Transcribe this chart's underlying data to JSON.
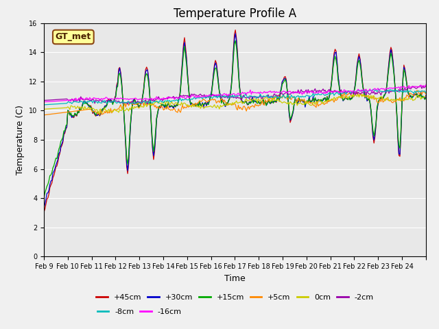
{
  "title": "Temperature Profile A",
  "xlabel": "Time",
  "ylabel": "Temperature (C)",
  "ylim": [
    0,
    16
  ],
  "yticks": [
    0,
    2,
    4,
    6,
    8,
    10,
    12,
    14,
    16
  ],
  "background_color": "#e8e8e8",
  "series": [
    {
      "label": "+45cm",
      "color": "#cc0000",
      "lw": 1.2
    },
    {
      "label": "+30cm",
      "color": "#0000cc",
      "lw": 1.2
    },
    {
      "label": "+15cm",
      "color": "#00cc00",
      "lw": 1.2
    },
    {
      "label": "+5cm",
      "color": "#ff8800",
      "lw": 1.2
    },
    {
      "label": "0cm",
      "color": "#cccc00",
      "lw": 1.2
    },
    {
      "label": "-2cm",
      "color": "#aa00aa",
      "lw": 1.2
    },
    {
      "label": "-8cm",
      "color": "#00cccc",
      "lw": 1.2
    },
    {
      "label": "-16cm",
      "color": "#ff00ff",
      "lw": 1.2
    }
  ],
  "xtick_labels": [
    "Feb 9",
    "Feb 10",
    "Feb 11",
    "Feb 12",
    "Feb 13",
    "Feb 14",
    "Feb 15",
    "Feb 16",
    "Feb 17",
    "Feb 18",
    "Feb 19",
    "Feb 20",
    "Feb 21",
    "Feb 22",
    "Feb 23",
    "Feb 24"
  ],
  "legend_text": "GT_met",
  "legend_box_color": "#ffff99",
  "legend_box_edge": "#8b4513"
}
